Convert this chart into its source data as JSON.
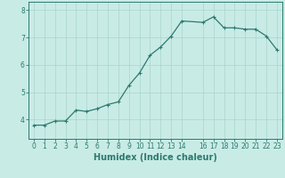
{
  "x": [
    0,
    1,
    2,
    3,
    4,
    5,
    6,
    7,
    8,
    9,
    10,
    11,
    12,
    13,
    14,
    16,
    17,
    18,
    19,
    20,
    21,
    22,
    23
  ],
  "y": [
    3.8,
    3.8,
    3.95,
    3.95,
    4.35,
    4.3,
    4.4,
    4.55,
    4.65,
    5.25,
    5.7,
    6.35,
    6.65,
    7.05,
    7.6,
    7.55,
    7.75,
    7.35,
    7.35,
    7.3,
    7.3,
    7.05,
    6.55
  ],
  "line_color": "#2d7a6e",
  "marker": "+",
  "marker_size": 3,
  "bg_color": "#c8ebe6",
  "grid_color": "#aad4cc",
  "xlabel": "Humidex (Indice chaleur)",
  "xlabel_fontsize": 7,
  "xlabel_color": "#2d7a6e",
  "xlim": [
    -0.5,
    23.5
  ],
  "ylim": [
    3.3,
    8.3
  ],
  "yticks": [
    4,
    5,
    6,
    7,
    8
  ],
  "xticks": [
    0,
    1,
    2,
    3,
    4,
    5,
    6,
    7,
    8,
    9,
    10,
    11,
    12,
    13,
    14,
    16,
    17,
    18,
    19,
    20,
    21,
    22,
    23
  ],
  "tick_label_fontsize": 5.5,
  "tick_label_color": "#2d7a6e",
  "line_width": 0.9,
  "spine_color": "#2d7a6e"
}
